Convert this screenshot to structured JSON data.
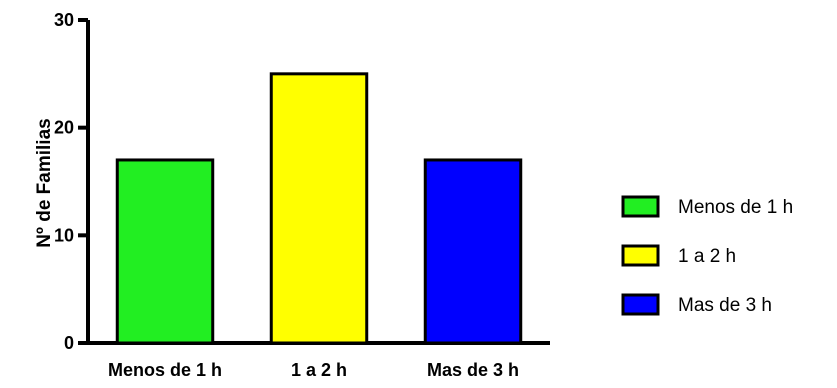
{
  "chart_data": {
    "type": "bar",
    "categories": [
      "Menos de 1 h",
      "1 a 2 h",
      "Mas de 3 h"
    ],
    "values": [
      17,
      25,
      17
    ],
    "colors": [
      "#22ee22",
      "#ffff00",
      "#0000ff"
    ],
    "title": "",
    "xlabel": "",
    "ylabel": "Nº de Familias",
    "ylim": [
      0,
      30
    ],
    "yticks": [
      "0",
      "10",
      "20",
      "30"
    ],
    "grid": false,
    "legend": {
      "position": "right",
      "entries": [
        "Menos de 1 h",
        "1 a 2 h",
        "Mas de 3 h"
      ]
    }
  }
}
